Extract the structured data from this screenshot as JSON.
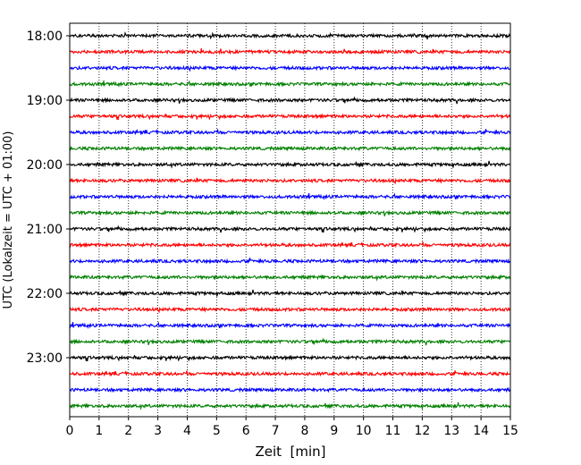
{
  "chart_data": {
    "type": "line",
    "title": "",
    "xlabel": "Zeit  [min]",
    "ylabel": "UTC (Lokalzeit = UTC + 01:00)",
    "xlim": [
      0,
      15
    ],
    "x_ticks": [
      0,
      1,
      2,
      3,
      4,
      5,
      6,
      7,
      8,
      9,
      10,
      11,
      12,
      13,
      14,
      15
    ],
    "x_tick_labels": [
      "0",
      "1",
      "2",
      "3",
      "4",
      "5",
      "6",
      "7",
      "8",
      "9",
      "10",
      "11",
      "12",
      "13",
      "14",
      "15"
    ],
    "y_tick_labels": [
      "18:00",
      "19:00",
      "20:00",
      "21:00",
      "22:00",
      "23:00"
    ],
    "grid": "vertical dotted",
    "colors": [
      "#000000",
      "#ff0000",
      "#0000ff",
      "#008000"
    ],
    "series": [
      {
        "start": "18:00",
        "color": "#000000"
      },
      {
        "start": "18:15",
        "color": "#ff0000"
      },
      {
        "start": "18:30",
        "color": "#0000ff"
      },
      {
        "start": "18:45",
        "color": "#008000"
      },
      {
        "start": "19:00",
        "color": "#000000"
      },
      {
        "start": "19:15",
        "color": "#ff0000"
      },
      {
        "start": "19:30",
        "color": "#0000ff"
      },
      {
        "start": "19:45",
        "color": "#008000"
      },
      {
        "start": "20:00",
        "color": "#000000"
      },
      {
        "start": "20:15",
        "color": "#ff0000"
      },
      {
        "start": "20:30",
        "color": "#0000ff"
      },
      {
        "start": "20:45",
        "color": "#008000"
      },
      {
        "start": "21:00",
        "color": "#000000"
      },
      {
        "start": "21:15",
        "color": "#ff0000"
      },
      {
        "start": "21:30",
        "color": "#0000ff"
      },
      {
        "start": "21:45",
        "color": "#008000"
      },
      {
        "start": "22:00",
        "color": "#000000"
      },
      {
        "start": "22:15",
        "color": "#ff0000"
      },
      {
        "start": "22:30",
        "color": "#0000ff"
      },
      {
        "start": "22:45",
        "color": "#008000"
      },
      {
        "start": "23:00",
        "color": "#000000"
      },
      {
        "start": "23:15",
        "color": "#ff0000"
      },
      {
        "start": "23:30",
        "color": "#0000ff"
      },
      {
        "start": "23:45",
        "color": "#008000"
      }
    ]
  }
}
